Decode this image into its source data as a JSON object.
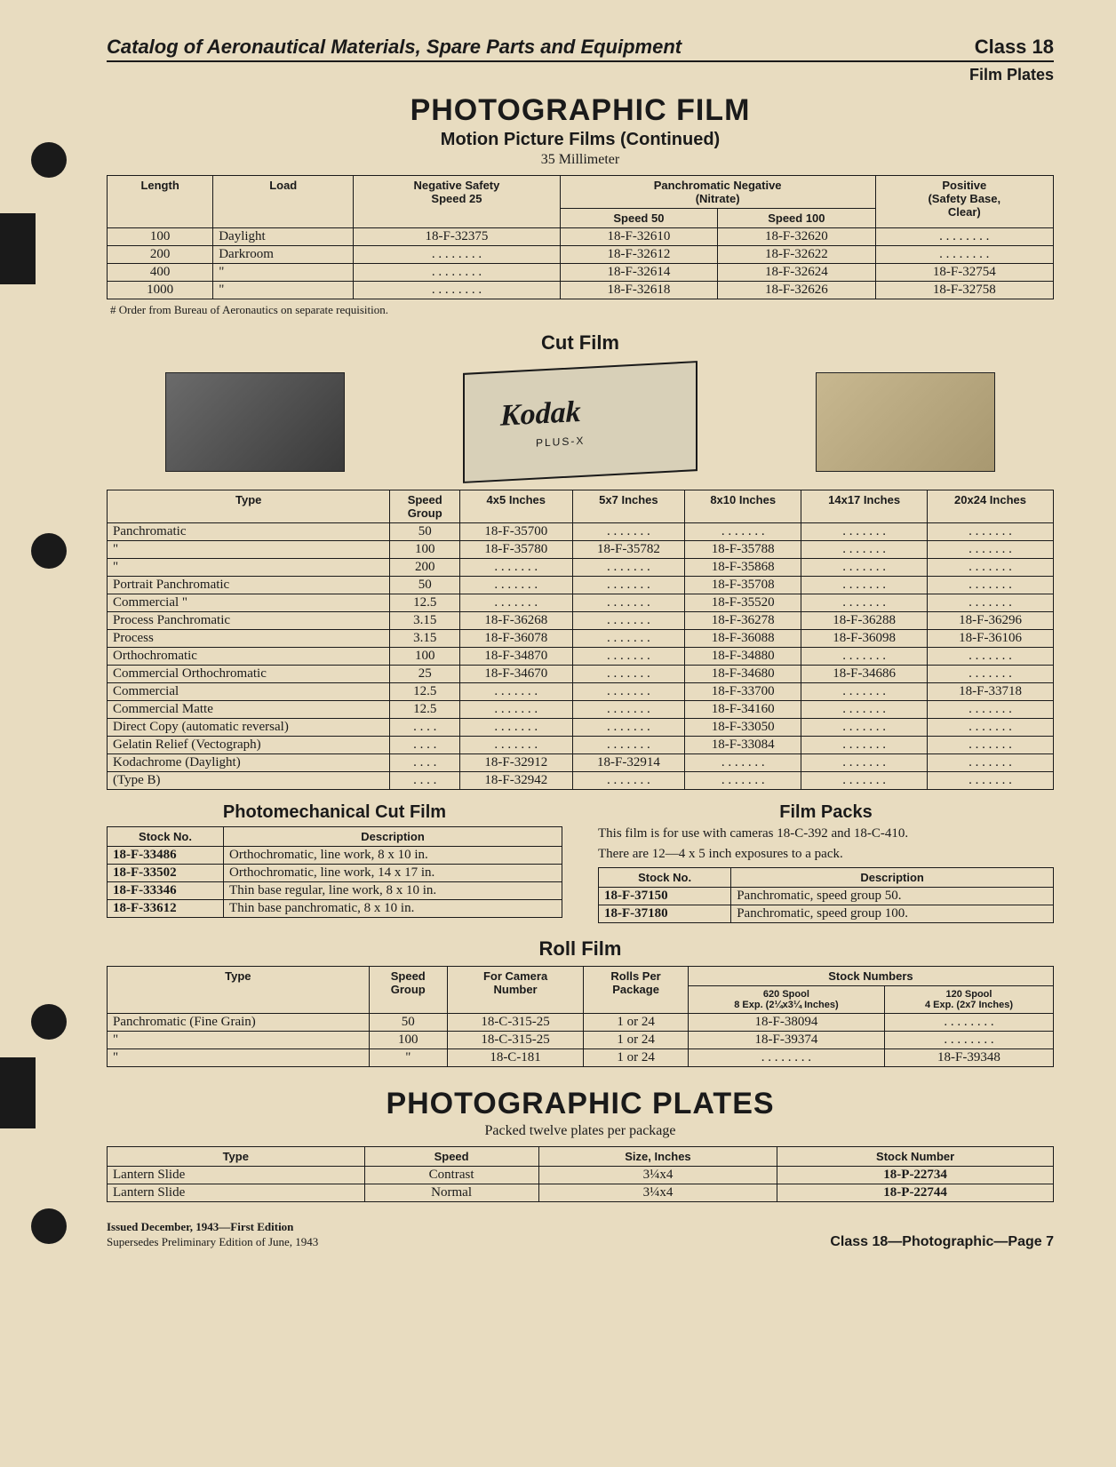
{
  "header": {
    "catalog_title": "Catalog of Aeronautical Materials, Spare Parts and Equipment",
    "class_label": "Class 18",
    "subheader": "Film Plates"
  },
  "title_block": {
    "main": "PHOTOGRAPHIC FILM",
    "sub": "Motion Picture Films (Continued)",
    "size": "35 Millimeter"
  },
  "mp_table": {
    "headers": {
      "length": "Length",
      "load": "Load",
      "neg_safety": "Negative Safety\nSpeed 25",
      "pan_neg": "Panchromatic Negative\n(Nitrate)",
      "speed50": "Speed 50",
      "speed100": "Speed 100",
      "positive": "Positive\n(Safety Base,\nClear)"
    },
    "rows": [
      {
        "length": "100",
        "load": "Daylight",
        "neg": "18-F-32375",
        "s50": "18-F-32610",
        "s100": "18-F-32620",
        "pos": ". . . . . . . ."
      },
      {
        "length": "200",
        "load": "Darkroom",
        "neg": ". . . . . . . .",
        "s50": "18-F-32612",
        "s100": "18-F-32622",
        "pos": ". . . . . . . ."
      },
      {
        "length": "400",
        "load": "\"",
        "neg": ". . . . . . . .",
        "s50": "18-F-32614",
        "s100": "18-F-32624",
        "pos": "18-F-32754"
      },
      {
        "length": "1000",
        "load": "\"",
        "neg": ". . . . . . . .",
        "s50": "18-F-32618",
        "s100": "18-F-32626",
        "pos": "18-F-32758"
      }
    ],
    "footnote": "# Order from Bureau of Aeronautics on separate requisition."
  },
  "cutfilm": {
    "title": "Cut Film",
    "kodak_sub": "PLUS-X",
    "headers": {
      "type": "Type",
      "speed": "Speed\nGroup",
      "s4x5": "4x5 Inches",
      "s5x7": "5x7 Inches",
      "s8x10": "8x10 Inches",
      "s14x17": "14x17 Inches",
      "s20x24": "20x24 Inches"
    },
    "rows": [
      {
        "type": "Panchromatic",
        "speed": "50",
        "a": "18-F-35700",
        "b": ". . . . . . .",
        "c": ". . . . . . .",
        "d": ". . . . . . .",
        "e": ". . . . . . ."
      },
      {
        "type": "\"",
        "speed": "100",
        "a": "18-F-35780",
        "b": "18-F-35782",
        "c": "18-F-35788",
        "d": ". . . . . . .",
        "e": ". . . . . . ."
      },
      {
        "type": "\"",
        "speed": "200",
        "a": ". . . . . . .",
        "b": ". . . . . . .",
        "c": "18-F-35868",
        "d": ". . . . . . .",
        "e": ". . . . . . ."
      },
      {
        "type": "Portrait Panchromatic",
        "speed": "50",
        "a": ". . . . . . .",
        "b": ". . . . . . .",
        "c": "18-F-35708",
        "d": ". . . . . . .",
        "e": ". . . . . . ."
      },
      {
        "type": "Commercial   \"",
        "speed": "12.5",
        "a": ". . . . . . .",
        "b": ". . . . . . .",
        "c": "18-F-35520",
        "d": ". . . . . . .",
        "e": ". . . . . . ."
      },
      {
        "type": "Process Panchromatic",
        "speed": "3.15",
        "a": "18-F-36268",
        "b": ". . . . . . .",
        "c": "18-F-36278",
        "d": "18-F-36288",
        "e": "18-F-36296"
      },
      {
        "type": "Process",
        "speed": "3.15",
        "a": "18-F-36078",
        "b": ". . . . . . .",
        "c": "18-F-36088",
        "d": "18-F-36098",
        "e": "18-F-36106"
      },
      {
        "type": "Orthochromatic",
        "speed": "100",
        "a": "18-F-34870",
        "b": ". . . . . . .",
        "c": "18-F-34880",
        "d": ". . . . . . .",
        "e": ". . . . . . ."
      },
      {
        "type": "Commercial Orthochromatic",
        "speed": "25",
        "a": "18-F-34670",
        "b": ". . . . . . .",
        "c": "18-F-34680",
        "d": "18-F-34686",
        "e": ". . . . . . ."
      },
      {
        "type": "Commercial",
        "speed": "12.5",
        "a": ". . . . . . .",
        "b": ". . . . . . .",
        "c": "18-F-33700",
        "d": ". . . . . . .",
        "e": "18-F-33718"
      },
      {
        "type": "Commercial Matte",
        "speed": "12.5",
        "a": ". . . . . . .",
        "b": ". . . . . . .",
        "c": "18-F-34160",
        "d": ". . . . . . .",
        "e": ". . . . . . ."
      },
      {
        "type": "Direct Copy (automatic reversal)",
        "speed": ". . . .",
        "a": ". . . . . . .",
        "b": ". . . . . . .",
        "c": "18-F-33050",
        "d": ". . . . . . .",
        "e": ". . . . . . ."
      },
      {
        "type": "Gelatin Relief (Vectograph)",
        "speed": ". . . .",
        "a": ". . . . . . .",
        "b": ". . . . . . .",
        "c": "18-F-33084",
        "d": ". . . . . . .",
        "e": ". . . . . . ."
      },
      {
        "type": "Kodachrome (Daylight)",
        "speed": ". . . .",
        "a": "18-F-32912",
        "b": "18-F-32914",
        "c": ". . . . . . .",
        "d": ". . . . . . .",
        "e": ". . . . . . ."
      },
      {
        "type": "            (Type B)",
        "speed": ". . . .",
        "a": "18-F-32942",
        "b": ". . . . . . .",
        "c": ". . . . . . .",
        "d": ". . . . . . .",
        "e": ". . . . . . ."
      }
    ]
  },
  "photomech": {
    "title": "Photomechanical Cut Film",
    "headers": {
      "stock": "Stock No.",
      "desc": "Description"
    },
    "rows": [
      {
        "stock": "18-F-33486",
        "desc": "Orthochromatic, line work, 8 x 10 in."
      },
      {
        "stock": "18-F-33502",
        "desc": "Orthochromatic, line work, 14 x 17 in."
      },
      {
        "stock": "18-F-33346",
        "desc": "Thin base regular, line work, 8 x 10 in."
      },
      {
        "stock": "18-F-33612",
        "desc": "Thin base panchromatic, 8 x 10 in."
      }
    ]
  },
  "filmpacks": {
    "title": "Film Packs",
    "desc1": "This film is for use with cameras 18-C-392 and 18-C-410.",
    "desc2": "There are 12—4 x 5 inch exposures to a pack.",
    "headers": {
      "stock": "Stock No.",
      "desc": "Description"
    },
    "rows": [
      {
        "stock": "18-F-37150",
        "desc": "Panchromatic, speed group 50."
      },
      {
        "stock": "18-F-37180",
        "desc": "Panchromatic, speed group 100."
      }
    ]
  },
  "rollfilm": {
    "title": "Roll Film",
    "headers": {
      "type": "Type",
      "speed": "Speed\nGroup",
      "camera": "For Camera\nNumber",
      "rolls": "Rolls Per\nPackage",
      "stocknums": "Stock Numbers",
      "s620": "620 Spool\n8 Exp. (2¼x3¼ Inches)",
      "s120": "120 Spool\n4 Exp. (2x7 Inches)"
    },
    "rows": [
      {
        "type": "Panchromatic (Fine Grain)",
        "speed": "50",
        "camera": "18-C-315-25",
        "rolls": "1 or 24",
        "s620": "18-F-38094",
        "s120": ". . . . . . . ."
      },
      {
        "type": "\"",
        "speed": "100",
        "camera": "18-C-315-25",
        "rolls": "1 or 24",
        "s620": "18-F-39374",
        "s120": ". . . . . . . ."
      },
      {
        "type": "\"",
        "speed": "\"",
        "camera": "18-C-181",
        "rolls": "1 or 24",
        "s620": ". . . . . . . .",
        "s120": "18-F-39348"
      }
    ]
  },
  "plates": {
    "title": "PHOTOGRAPHIC PLATES",
    "sub": "Packed twelve plates per package",
    "headers": {
      "type": "Type",
      "speed": "Speed",
      "size": "Size, Inches",
      "stock": "Stock Number"
    },
    "rows": [
      {
        "type": "Lantern Slide",
        "speed": "Contrast",
        "size": "3¼x4",
        "stock": "18-P-22734"
      },
      {
        "type": "Lantern Slide",
        "speed": "Normal",
        "size": "3¼x4",
        "stock": "18-P-22744"
      }
    ]
  },
  "footer": {
    "line1": "Issued December, 1943—First Edition",
    "line2": "Supersedes Preliminary Edition of June, 1943",
    "right": "Class 18—Photographic—Page 7"
  }
}
